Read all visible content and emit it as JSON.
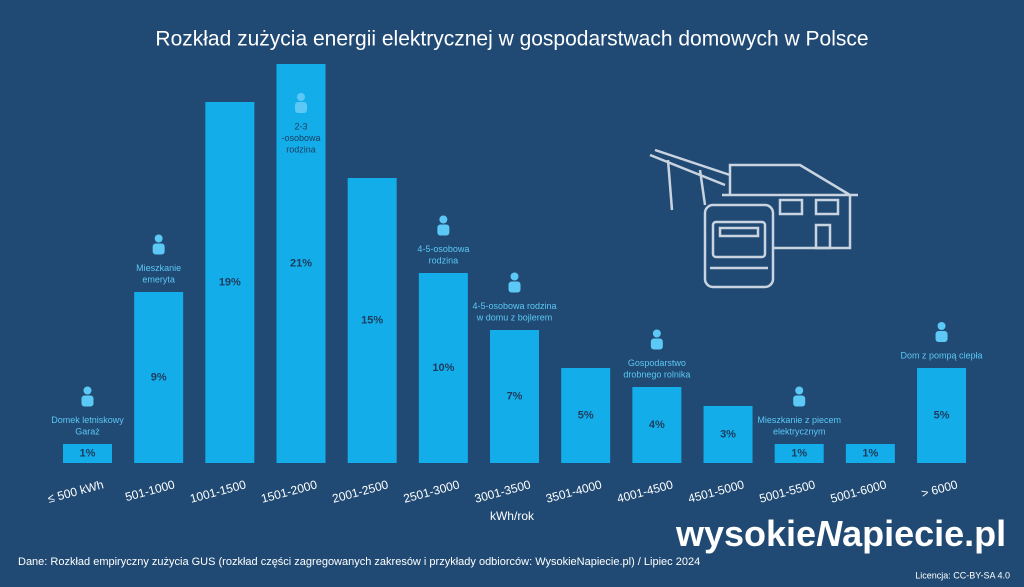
{
  "chart_data": {
    "type": "bar",
    "title": "Rozkład zużycia energii elektrycznej w gospodarstwach domowych w Polsce",
    "x_label": "kWh/rok",
    "categories": [
      "≤ 500 kWh",
      "501-1000",
      "1001-1500",
      "1501-2000",
      "2001-2500",
      "2501-3000",
      "3001-3500",
      "3501-4000",
      "4001-4500",
      "4501-5000",
      "5001-5500",
      "5001-6000",
      "> 6000"
    ],
    "values": [
      1,
      9,
      19,
      21,
      15,
      10,
      7,
      5,
      4,
      3,
      1,
      1,
      5
    ],
    "value_labels": [
      "1%",
      "9%",
      "19%",
      "21%",
      "15%",
      "10%",
      "7%",
      "5%",
      "4%",
      "3%",
      "1%",
      "1%",
      "5%"
    ],
    "annotations": [
      [
        "Domek letniskowy",
        "Garaż"
      ],
      [
        "Mieszkanie",
        "emeryta"
      ],
      null,
      [
        "2-3",
        "-osobowa",
        "rodzina"
      ],
      null,
      [
        "4-5-osobowa",
        "rodzina"
      ],
      [
        "4-5-osobowa rodzina",
        "w domu z bojlerem"
      ],
      null,
      [
        "Gospodarstwo",
        "drobnego rolnika"
      ],
      null,
      [
        "Mieszkanie z piecem",
        "elektrycznym"
      ],
      null,
      [
        "Dom z pompą ciepła"
      ]
    ],
    "color": "#13aeea"
  },
  "source": "Dane: Rozkład empiryczny zużycia GUS (rozkład części zagregowanych zakresów i przykłady odbiorców: WysokieNapiecie.pl)  /  Lipiec 2024",
  "license": "Licencja: CC-BY-SA 4.0",
  "brand": [
    "wysokie",
    "N",
    "apiecie.pl"
  ]
}
